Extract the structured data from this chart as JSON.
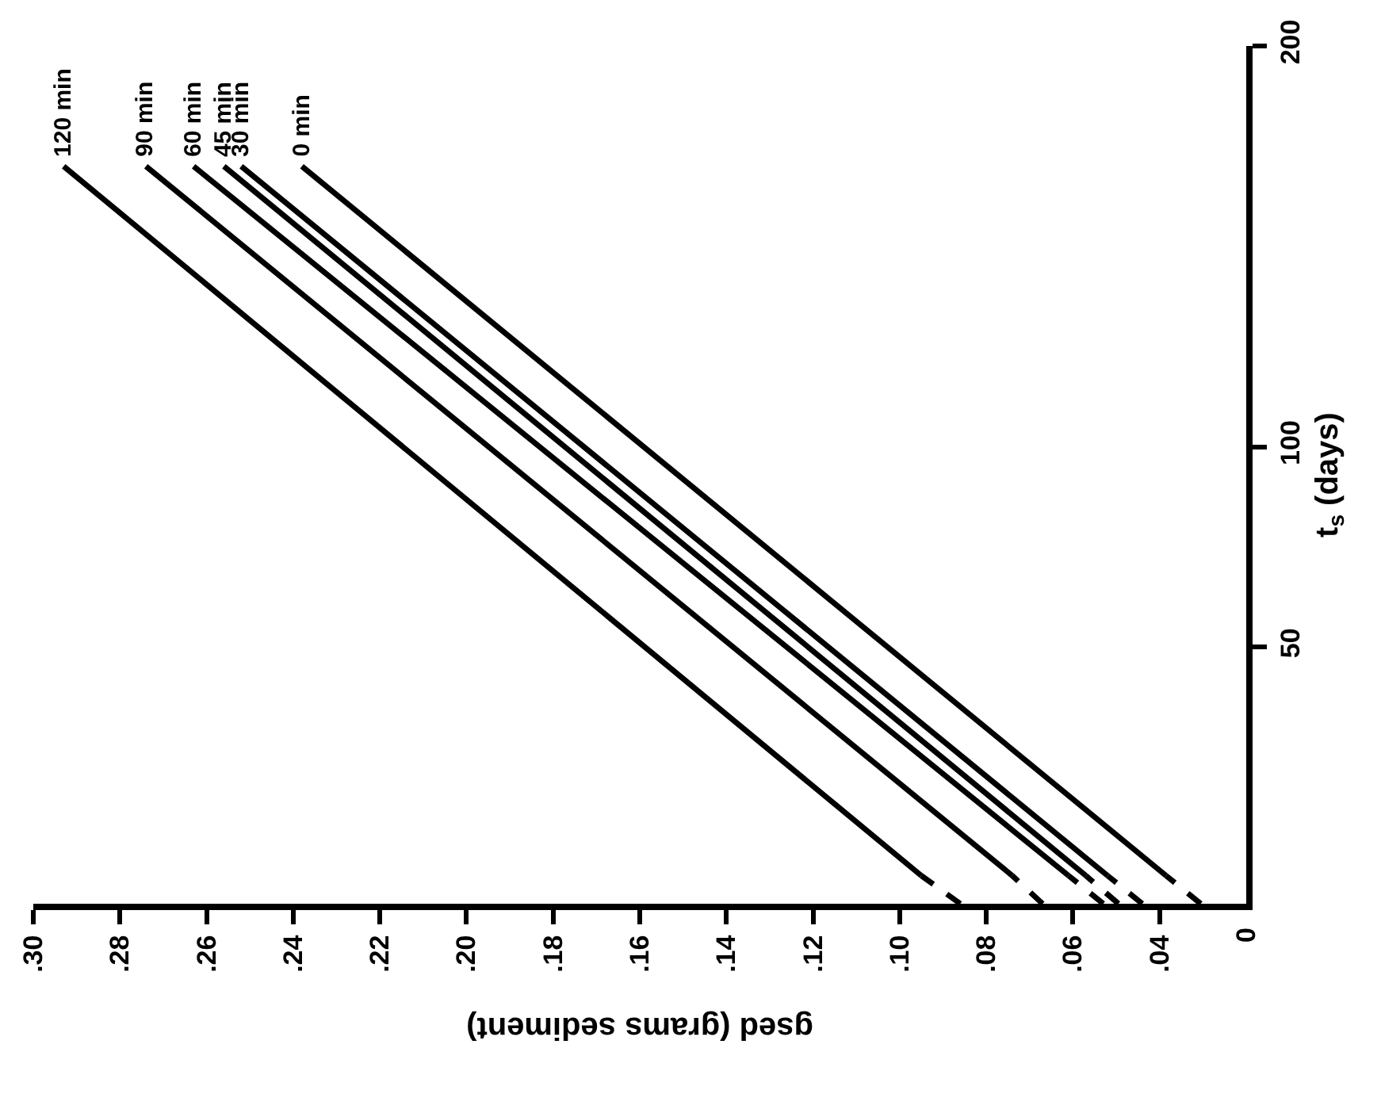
{
  "chart_data": {
    "type": "line",
    "xlabel": "gsed (grams sediment)",
    "ylabel": "t$_{s}$ (days)",
    "xlim": [
      0.3,
      0.02
    ],
    "xticks": [
      {
        "value": 0.3,
        "label": ".30"
      },
      {
        "value": 0.28,
        "label": ".28"
      },
      {
        "value": 0.26,
        "label": ".26"
      },
      {
        "value": 0.24,
        "label": ".24"
      },
      {
        "value": 0.22,
        "label": ".22"
      },
      {
        "value": 0.2,
        "label": ".20"
      },
      {
        "value": 0.18,
        "label": ".18"
      },
      {
        "value": 0.16,
        "label": ".16"
      },
      {
        "value": 0.14,
        "label": ".14"
      },
      {
        "value": 0.12,
        "label": ".12"
      },
      {
        "value": 0.1,
        "label": ".10"
      },
      {
        "value": 0.08,
        "label": ".08"
      },
      {
        "value": 0.06,
        "label": ".06"
      },
      {
        "value": 0.04,
        "label": ".04"
      }
    ],
    "ylim": [
      -14,
      200
    ],
    "yticks": [
      50,
      100,
      200
    ],
    "annotations": [
      "0"
    ],
    "legend": false,
    "marker": "none",
    "series": [
      {
        "name": "120 min",
        "color": "#000000",
        "line_style": "solid",
        "x": [
          0.095,
          0.293
        ],
        "values": [
          -7,
          170
        ]
      },
      {
        "name": "90 min",
        "color": "#000000",
        "line_style": "solid",
        "x": [
          0.074,
          0.274
        ],
        "values": [
          -7,
          170
        ]
      },
      {
        "name": "60 min",
        "color": "#000000",
        "line_style": "solid",
        "x": [
          0.061,
          0.263
        ],
        "values": [
          -7,
          170
        ]
      },
      {
        "name": "45 min",
        "color": "#000000",
        "line_style": "solid",
        "x": [
          0.057,
          0.256
        ],
        "values": [
          -7,
          170
        ]
      },
      {
        "name": "30 min",
        "color": "#000000",
        "line_style": "solid",
        "x": [
          0.052,
          0.252
        ],
        "values": [
          -7,
          170
        ]
      },
      {
        "name": "0 min",
        "color": "#000000",
        "line_style": "solid",
        "x": [
          0.0385,
          0.238
        ],
        "values": [
          -7,
          170
        ]
      },
      {
        "color": "#000000",
        "line_style": "dashed",
        "x": [
          0.086,
          0.095
        ],
        "values": [
          -14,
          -7
        ]
      },
      {
        "color": "#000000",
        "line_style": "dashed",
        "x": [
          0.067,
          0.074
        ],
        "values": [
          -14,
          -7
        ]
      },
      {
        "color": "#000000",
        "line_style": "dashed",
        "x": [
          0.053,
          0.061
        ],
        "values": [
          -14,
          -7
        ]
      },
      {
        "color": "#000000",
        "line_style": "dashed",
        "x": [
          0.0495,
          0.057
        ],
        "values": [
          -14,
          -7
        ]
      },
      {
        "color": "#000000",
        "line_style": "dashed",
        "x": [
          0.044,
          0.052
        ],
        "values": [
          -14,
          -7
        ]
      },
      {
        "color": "#000000",
        "line_style": "dashed",
        "x": [
          0.0305,
          0.0385
        ],
        "values": [
          -14,
          -7
        ]
      }
    ]
  }
}
